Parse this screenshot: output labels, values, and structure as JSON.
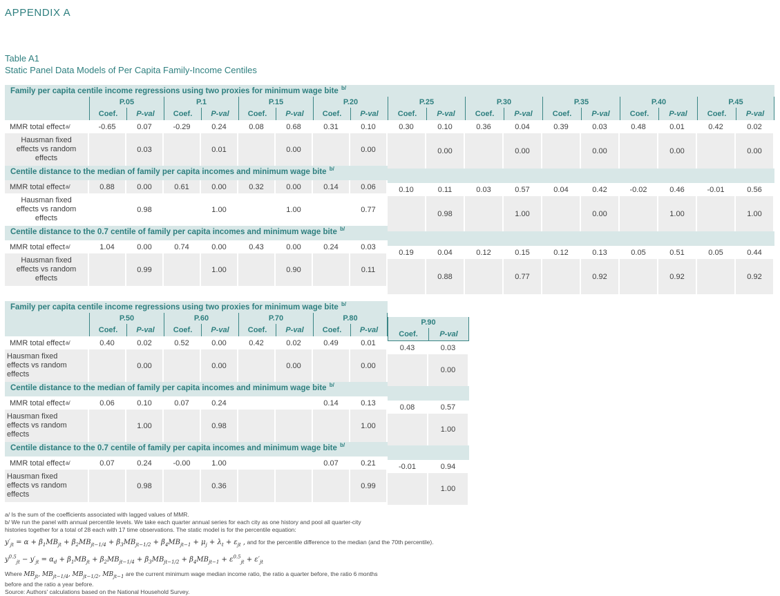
{
  "header": {
    "appendix": "APPENDIX A",
    "table_label": "Table A1",
    "table_title": "Static Panel Data Models of Per Capita Family-Income Centiles"
  },
  "shared": {
    "coef_header": "Coef.",
    "pval_header": "P-val",
    "mmr_row_label": "MMR total effect",
    "mmr_note": "a/",
    "section_note": "b/",
    "hausman_row_label_lines": [
      "Hausman fixed",
      "effects vs random",
      "effects"
    ]
  },
  "colors": {
    "teal_text": "#2e7f7f",
    "band_bg": "#d8e7e7",
    "shaded_cell_bg": "#ededed",
    "separator": "#3a8585",
    "body_text": "#3f3f3f"
  },
  "tables": [
    {
      "main_groups": [
        "P.05",
        "P.1",
        "P.15",
        "P.20"
      ],
      "offset_groups": [
        "P.25",
        "P.30",
        "P.35",
        "P.40",
        "P.45"
      ],
      "sections": [
        {
          "title": "Family per capita centile income regressions using two proxies for minimum wage bite",
          "main": {
            "mmr": [
              [
                "-0.65",
                "0.07"
              ],
              [
                "-0.29",
                "0.24"
              ],
              [
                "0.08",
                "0.68"
              ],
              [
                "0.31",
                "0.10"
              ]
            ],
            "hausman": [
              "0.03",
              "0.01",
              "0.00",
              "0.00"
            ],
            "mmr_shaded": false,
            "hausman_shaded": true
          },
          "offset": {
            "mmr": [
              [
                "0.30",
                "0.10"
              ],
              [
                "0.36",
                "0.04"
              ],
              [
                "0.39",
                "0.03"
              ],
              [
                "0.48",
                "0.01"
              ],
              [
                "0.42",
                "0.02"
              ]
            ],
            "hausman": [
              "0.00",
              "0.00",
              "0.00",
              "0.00",
              "0.00"
            ],
            "mmr_shaded": false,
            "hausman_shaded": true
          }
        },
        {
          "title": "Centile distance to the median of family per capita incomes and minimum wage bite",
          "main": {
            "mmr": [
              [
                "0.88",
                "0.00"
              ],
              [
                "0.61",
                "0.00"
              ],
              [
                "0.32",
                "0.00"
              ],
              [
                "0.14",
                "0.06"
              ]
            ],
            "hausman": [
              "0.98",
              "1.00",
              "1.00",
              "0.77"
            ],
            "mmr_shaded": true,
            "hausman_shaded": false
          },
          "offset": {
            "mmr": [
              [
                "0.10",
                "0.11"
              ],
              [
                "0.03",
                "0.57"
              ],
              [
                "0.04",
                "0.42"
              ],
              [
                "-0.02",
                "0.46"
              ],
              [
                "-0.01",
                "0.56"
              ]
            ],
            "hausman": [
              "0.98",
              "1.00",
              "0.00",
              "1.00",
              "1.00"
            ],
            "mmr_shaded": false,
            "hausman_shaded": true
          }
        },
        {
          "title": "Centile distance to the 0.7 centile of family per capita incomes and minimum wage bite",
          "main": {
            "mmr": [
              [
                "1.04",
                "0.00"
              ],
              [
                "0.74",
                "0.00"
              ],
              [
                "0.43",
                "0.00"
              ],
              [
                "0.24",
                "0.03"
              ]
            ],
            "hausman": [
              "0.99",
              "1.00",
              "0.90",
              "0.11"
            ],
            "mmr_shaded": false,
            "hausman_shaded": true
          },
          "offset": {
            "mmr": [
              [
                "0.19",
                "0.04"
              ],
              [
                "0.12",
                "0.15"
              ],
              [
                "0.12",
                "0.13"
              ],
              [
                "0.05",
                "0.51"
              ],
              [
                "0.05",
                "0.44"
              ]
            ],
            "hausman": [
              "0.88",
              "0.77",
              "0.92",
              "0.92",
              "0.92"
            ],
            "mmr_shaded": false,
            "hausman_shaded": true
          }
        }
      ]
    },
    {
      "main_groups": [
        "P.50",
        "P.60",
        "P.70",
        "P.80"
      ],
      "offset_groups": [
        "P.90"
      ],
      "sections": [
        {
          "title": "Family per capita centile income regressions using two proxies for minimum wage bite",
          "main": {
            "mmr": [
              [
                "0.40",
                "0.02"
              ],
              [
                "0.52",
                "0.00"
              ],
              [
                "0.42",
                "0.02"
              ],
              [
                "0.49",
                "0.01"
              ]
            ],
            "hausman": [
              "0.00",
              "0.00",
              "0.00",
              "0.00"
            ],
            "mmr_shaded": false,
            "hausman_shaded": true
          },
          "offset": {
            "mmr": [
              [
                "0.43",
                "0.03"
              ]
            ],
            "hausman": [
              "0.00"
            ],
            "mmr_shaded": false,
            "hausman_shaded": true
          }
        },
        {
          "title": "Centile distance to the median of family per capita incomes and minimum wage bite",
          "main": {
            "mmr": [
              [
                "0.06",
                "0.10"
              ],
              [
                "0.07",
                "0.24"
              ],
              [
                "",
                ""
              ],
              [
                "0.14",
                "0.13"
              ]
            ],
            "hausman": [
              "1.00",
              "0.98",
              "",
              "1.00"
            ],
            "mmr_shaded": false,
            "hausman_shaded": true
          },
          "offset": {
            "mmr": [
              [
                "0.08",
                "0.57"
              ]
            ],
            "hausman": [
              "1.00"
            ],
            "mmr_shaded": false,
            "hausman_shaded": true
          }
        },
        {
          "title": "Centile distance to the 0.7 centile of family per capita incomes and minimum wage bite",
          "main": {
            "mmr": [
              [
                "0.07",
                "0.24"
              ],
              [
                "-0.00",
                "1.00"
              ],
              [
                "",
                ""
              ],
              [
                "0.07",
                "0.21"
              ]
            ],
            "hausman": [
              "0.98",
              "0.36",
              "",
              "0.99"
            ],
            "mmr_shaded": false,
            "hausman_shaded": true
          },
          "offset": {
            "mmr": [
              [
                "-0.01",
                "0.94"
              ]
            ],
            "hausman": [
              "1.00"
            ],
            "mmr_shaded": false,
            "hausman_shaded": true
          }
        }
      ]
    }
  ],
  "footnotes": {
    "line_a": "a/ Is the sum of the coefficients associated with lagged values of MMR.",
    "line_b1": "b/ We run the panel with annual percentile levels. We take each quarter annual series for each city as one history and pool all quarter-city",
    "line_b2": "histories together for a total of 28 each with 17 time observations. The static model is for the percentile equation:",
    "eq1": "y′~jt~ = α + β~1~MB~jt~ + β~2~MB~jt−1/4~ + β~3~MB~jt−1/2~ + β~4~MB~jt−1~ + μ~j~ + λ~t~ + ε~jt~ ,",
    "eq1_tail": " and for the percentile difference to the median (and the 70th percentile).",
    "eq2": "y^0.5^~jt~ − y′~jt~ = α~d~ + β~1~MB~jt~ + β~2~MB~jt−1/4~ + β~3~MB~jt−1/2~ + β~4~MB~jt−1~ + ε^0.5^~jt~ + ε′~jt~",
    "where_pre": "Where ",
    "where_math": "MB~jt~, MB~jt−1/4~, MB~jt−1/2~, MB~jt−1~",
    "where_post": " are the current minimum wage median income ratio, the ratio a quarter before, the ratio 6 months",
    "where_line2": "before and the ratio a year before.",
    "source": "Source: Authors' calculations based on the National Household Survey."
  }
}
